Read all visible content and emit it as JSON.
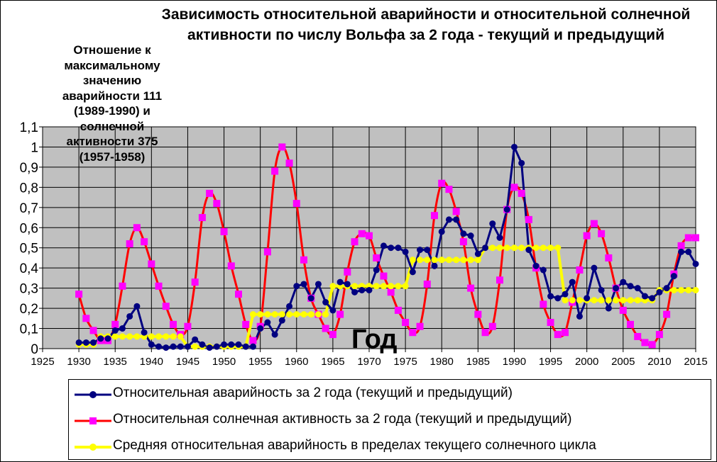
{
  "chart_data": {
    "type": "line",
    "title": "Зависимость относительной аварийности и относительной солнечной активности по числу Вольфа за 2 года - текущий и предыдущий",
    "ylabel_lines": [
      "Отношение к",
      "максимальному",
      "значению",
      "аварийности 111",
      "(1989-1990) и",
      "солнечной",
      "активности 375",
      "(1957-1958)"
    ],
    "xlabel": "Год",
    "xlim": [
      1925,
      2015
    ],
    "ylim": [
      0,
      1.1
    ],
    "x_ticks": [
      "1925",
      "1930",
      "1935",
      "1940",
      "1945",
      "1950",
      "1955",
      "1960",
      "1965",
      "1970",
      "1975",
      "1980",
      "1985",
      "1990",
      "1995",
      "2000",
      "2005",
      "2010",
      "2015"
    ],
    "y_ticks": [
      "0",
      "0,1",
      "0,2",
      "0,3",
      "0,4",
      "0,5",
      "0,6",
      "0,7",
      "0,8",
      "0,9",
      "1",
      "1,1"
    ],
    "grid": true,
    "plot_background": "#c0c0c0",
    "legend_position": "bottom",
    "series": [
      {
        "name": "Относительная аварийность за 2 года (текущий и предыдущий)",
        "color": "#000080",
        "marker": "circle",
        "x": [
          1930,
          1931,
          1932,
          1933,
          1934,
          1935,
          1936,
          1937,
          1938,
          1939,
          1940,
          1941,
          1942,
          1943,
          1944,
          1945,
          1946,
          1947,
          1948,
          1949,
          1950,
          1951,
          1952,
          1953,
          1954,
          1955,
          1956,
          1957,
          1958,
          1959,
          1960,
          1961,
          1962,
          1963,
          1964,
          1965,
          1966,
          1967,
          1968,
          1969,
          1970,
          1971,
          1972,
          1973,
          1974,
          1975,
          1976,
          1977,
          1978,
          1979,
          1980,
          1981,
          1982,
          1983,
          1984,
          1985,
          1986,
          1987,
          1988,
          1989,
          1990,
          1991,
          1992,
          1993,
          1994,
          1995,
          1996,
          1997,
          1998,
          1999,
          2000,
          2001,
          2002,
          2003,
          2004,
          2005,
          2006,
          2007,
          2008,
          2009,
          2010,
          2011,
          2012,
          2013,
          2014,
          2015
        ],
        "values": [
          0.03,
          0.03,
          0.03,
          0.05,
          0.05,
          0.09,
          0.1,
          0.16,
          0.21,
          0.08,
          0.02,
          0.01,
          0.005,
          0.01,
          0.01,
          0.01,
          0.045,
          0.02,
          0.005,
          0.01,
          0.02,
          0.02,
          0.02,
          0.01,
          0.01,
          0.1,
          0.13,
          0.07,
          0.14,
          0.21,
          0.31,
          0.32,
          0.25,
          0.32,
          0.23,
          0.19,
          0.33,
          0.32,
          0.28,
          0.29,
          0.29,
          0.39,
          0.51,
          0.5,
          0.5,
          0.48,
          0.38,
          0.49,
          0.49,
          0.41,
          0.58,
          0.64,
          0.64,
          0.57,
          0.56,
          0.47,
          0.5,
          0.62,
          0.55,
          0.69,
          1.0,
          0.92,
          0.49,
          0.41,
          0.39,
          0.26,
          0.25,
          0.27,
          0.33,
          0.16,
          0.25,
          0.4,
          0.29,
          0.2,
          0.3,
          0.33,
          0.31,
          0.3,
          0.26,
          0.25,
          0.28,
          0.3,
          0.36,
          0.48,
          0.48,
          0.42
        ]
      },
      {
        "name": "Относительная солнечная активность за 2 года (текущий и предыдущий)",
        "color": "#ff0000",
        "marker_color": "#ff00ff",
        "marker": "square",
        "x": [
          1930,
          1931,
          1932,
          1933,
          1934,
          1935,
          1936,
          1937,
          1938,
          1939,
          1940,
          1941,
          1942,
          1943,
          1944,
          1945,
          1946,
          1947,
          1948,
          1949,
          1950,
          1951,
          1952,
          1953,
          1954,
          1955,
          1956,
          1957,
          1958,
          1959,
          1960,
          1961,
          1962,
          1963,
          1964,
          1965,
          1966,
          1967,
          1968,
          1969,
          1970,
          1971,
          1972,
          1973,
          1974,
          1975,
          1976,
          1977,
          1978,
          1979,
          1980,
          1981,
          1982,
          1983,
          1984,
          1985,
          1986,
          1987,
          1988,
          1989,
          1990,
          1991,
          1992,
          1993,
          1994,
          1995,
          1996,
          1997,
          1998,
          1999,
          2000,
          2001,
          2002,
          2003,
          2004,
          2005,
          2006,
          2007,
          2008,
          2009,
          2010,
          2011,
          2012,
          2013,
          2014,
          2015
        ],
        "values": [
          0.27,
          0.15,
          0.09,
          0.04,
          0.04,
          0.12,
          0.31,
          0.52,
          0.6,
          0.53,
          0.42,
          0.31,
          0.21,
          0.12,
          0.07,
          0.11,
          0.33,
          0.65,
          0.77,
          0.72,
          0.58,
          0.41,
          0.27,
          0.12,
          0.04,
          0.11,
          0.48,
          0.88,
          1.0,
          0.92,
          0.72,
          0.44,
          0.25,
          0.17,
          0.1,
          0.07,
          0.17,
          0.38,
          0.53,
          0.57,
          0.56,
          0.45,
          0.36,
          0.28,
          0.19,
          0.13,
          0.08,
          0.11,
          0.32,
          0.66,
          0.82,
          0.79,
          0.68,
          0.53,
          0.3,
          0.17,
          0.08,
          0.11,
          0.34,
          0.69,
          0.8,
          0.77,
          0.64,
          0.4,
          0.22,
          0.13,
          0.07,
          0.08,
          0.23,
          0.39,
          0.56,
          0.62,
          0.57,
          0.45,
          0.3,
          0.19,
          0.12,
          0.06,
          0.03,
          0.02,
          0.07,
          0.17,
          0.37,
          0.51,
          0.55,
          0.55
        ]
      },
      {
        "name": "Средняя относительная аварийность в пределах текущего солнечного цикла",
        "color": "#ffff00",
        "marker": "circle",
        "x": [
          1930,
          1931,
          1932,
          1933,
          1934,
          1935,
          1936,
          1937,
          1938,
          1939,
          1940,
          1941,
          1942,
          1943,
          1944,
          1945,
          1946,
          1947,
          1948,
          1949,
          1950,
          1951,
          1952,
          1953,
          1954,
          1955,
          1956,
          1957,
          1958,
          1959,
          1960,
          1961,
          1962,
          1963,
          1964,
          1965,
          1966,
          1967,
          1968,
          1969,
          1970,
          1971,
          1972,
          1973,
          1974,
          1975,
          1976,
          1977,
          1978,
          1979,
          1980,
          1981,
          1982,
          1983,
          1984,
          1985,
          1986,
          1987,
          1988,
          1989,
          1990,
          1991,
          1992,
          1993,
          1994,
          1995,
          1996,
          1997,
          1998,
          1999,
          2000,
          2001,
          2002,
          2003,
          2004,
          2005,
          2006,
          2007,
          2008,
          2009,
          2010,
          2011,
          2012,
          2013,
          2014,
          2015
        ],
        "values": [
          0.02,
          0.02,
          0.02,
          0.06,
          0.06,
          0.06,
          0.06,
          0.06,
          0.06,
          0.06,
          0.06,
          0.06,
          0.06,
          0.06,
          0.06,
          0.01,
          0.01,
          0.01,
          0.01,
          0.01,
          0.01,
          0.01,
          0.01,
          0.01,
          0.17,
          0.17,
          0.17,
          0.17,
          0.17,
          0.17,
          0.17,
          0.17,
          0.17,
          0.17,
          0.17,
          0.31,
          0.31,
          0.31,
          0.31,
          0.31,
          0.31,
          0.31,
          0.31,
          0.31,
          0.31,
          0.31,
          0.44,
          0.44,
          0.44,
          0.44,
          0.44,
          0.44,
          0.44,
          0.44,
          0.44,
          0.44,
          0.5,
          0.5,
          0.5,
          0.5,
          0.5,
          0.5,
          0.5,
          0.5,
          0.5,
          0.5,
          0.5,
          0.24,
          0.24,
          0.24,
          0.24,
          0.24,
          0.24,
          0.24,
          0.24,
          0.24,
          0.24,
          0.24,
          0.24,
          0.24,
          0.29,
          0.29,
          0.29,
          0.29,
          0.29,
          0.29
        ]
      }
    ]
  }
}
